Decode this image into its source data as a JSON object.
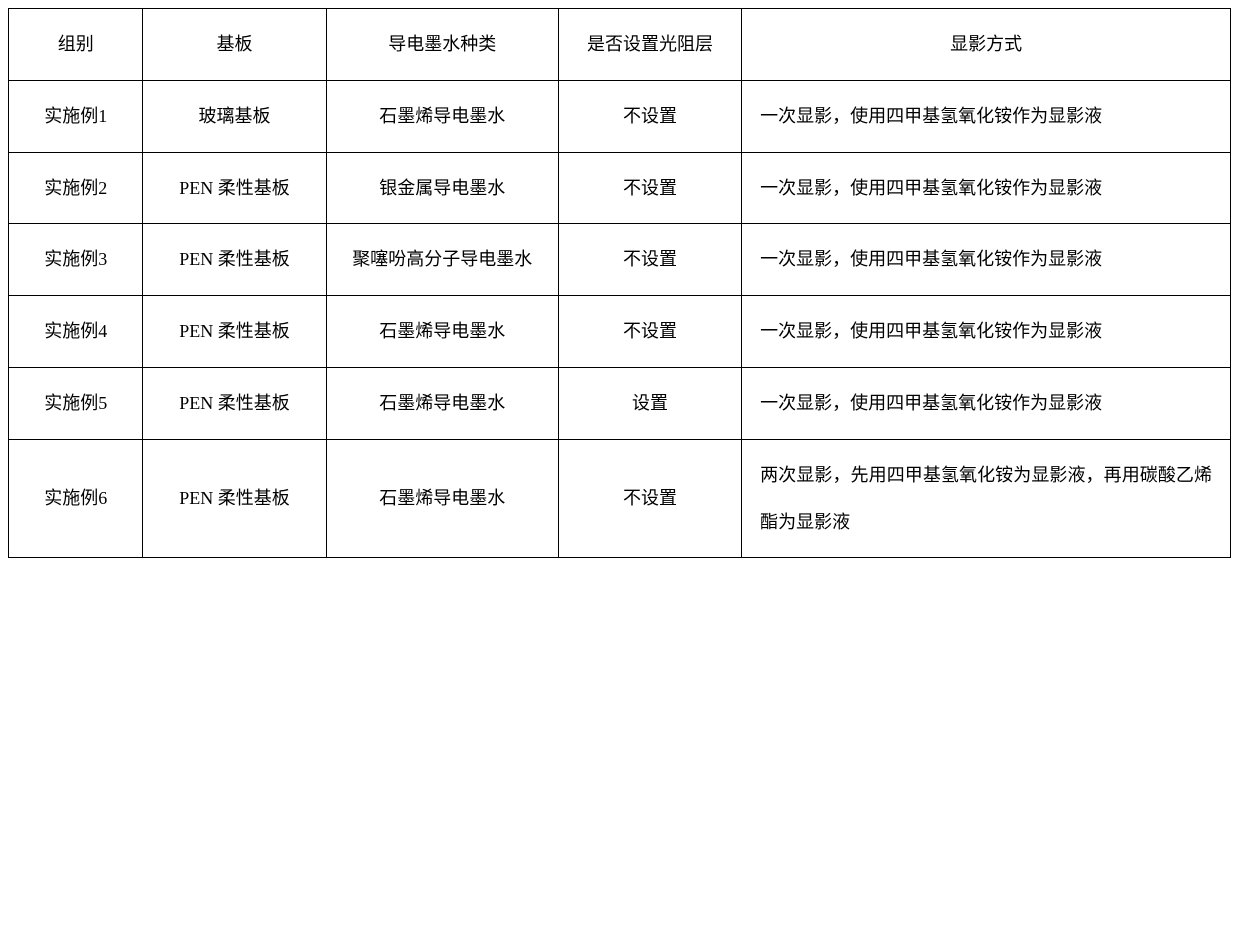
{
  "table": {
    "columns": [
      {
        "key": "group",
        "label": "组别",
        "class": "col-group",
        "align": "center"
      },
      {
        "key": "substrate",
        "label": "基板",
        "class": "col-substrate",
        "align": "center"
      },
      {
        "key": "ink_type",
        "label": "导电墨水种类",
        "class": "col-ink",
        "align": "center"
      },
      {
        "key": "photoresist",
        "label": "是否设置光阻层",
        "class": "col-photoresist",
        "align": "center"
      },
      {
        "key": "develop_method",
        "label": "显影方式",
        "class": "col-develop",
        "align": "justify"
      }
    ],
    "rows": [
      {
        "group": "实施例1",
        "substrate": "玻璃基板",
        "ink_type": "石墨烯导电墨水",
        "photoresist": "不设置",
        "develop_method": "一次显影，使用四甲基氢氧化铵作为显影液"
      },
      {
        "group": "实施例2",
        "substrate": "PEN 柔性基板",
        "ink_type": "银金属导电墨水",
        "photoresist": "不设置",
        "develop_method": "一次显影，使用四甲基氢氧化铵作为显影液"
      },
      {
        "group": "实施例3",
        "substrate": "PEN 柔性基板",
        "ink_type": "聚噻吩高分子导电墨水",
        "photoresist": "不设置",
        "develop_method": "一次显影，使用四甲基氢氧化铵作为显影液"
      },
      {
        "group": "实施例4",
        "substrate": "PEN 柔性基板",
        "ink_type": "石墨烯导电墨水",
        "photoresist": "不设置",
        "develop_method": "一次显影，使用四甲基氢氧化铵作为显影液"
      },
      {
        "group": "实施例5",
        "substrate": "PEN 柔性基板",
        "ink_type": "石墨烯导电墨水",
        "photoresist": "设置",
        "develop_method": "一次显影，使用四甲基氢氧化铵作为显影液"
      },
      {
        "group": "实施例6",
        "substrate": "PEN 柔性基板",
        "ink_type": "石墨烯导电墨水",
        "photoresist": "不设置",
        "develop_method": "两次显影，先用四甲基氢氧化铵为显影液，再用碳酸乙烯酯为显影液"
      }
    ],
    "styling": {
      "border_color": "#000000",
      "border_width": 1,
      "background_color": "#ffffff",
      "text_color": "#000000",
      "font_size": 18,
      "line_height": 2.6,
      "cell_padding": "12px 8px",
      "font_family": "SimSun"
    }
  }
}
